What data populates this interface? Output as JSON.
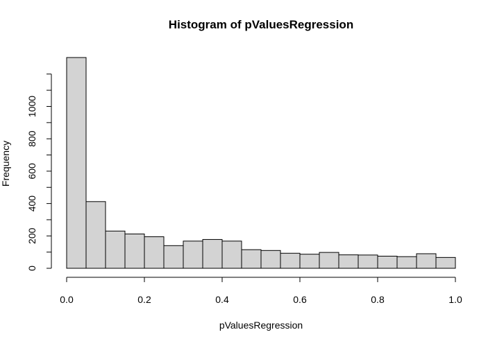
{
  "chart_data": {
    "type": "bar",
    "subtype": "histogram",
    "title": "Histogram of pValuesRegression",
    "xlabel": "pValuesRegression",
    "ylabel": "Frequency",
    "bin_edges": [
      0.0,
      0.05,
      0.1,
      0.15,
      0.2,
      0.25,
      0.3,
      0.35,
      0.4,
      0.45,
      0.5,
      0.55,
      0.6,
      0.65,
      0.7,
      0.75,
      0.8,
      0.85,
      0.9,
      0.95,
      1.0
    ],
    "values": [
      1302,
      412,
      230,
      212,
      195,
      140,
      168,
      178,
      168,
      115,
      110,
      93,
      87,
      98,
      83,
      82,
      75,
      72,
      90,
      67
    ],
    "xlim": [
      0,
      1
    ],
    "ylim": [
      0,
      1302
    ],
    "x_ticks": [
      "0.0",
      "0.2",
      "0.4",
      "0.6",
      "0.8",
      "1.0"
    ],
    "y_ticks": [
      "0",
      "200",
      "400",
      "600",
      "800",
      "1000"
    ],
    "grid": false,
    "legend": "none",
    "colors": {
      "bar_fill": "#d3d3d3",
      "bar_stroke": "#000000"
    }
  }
}
